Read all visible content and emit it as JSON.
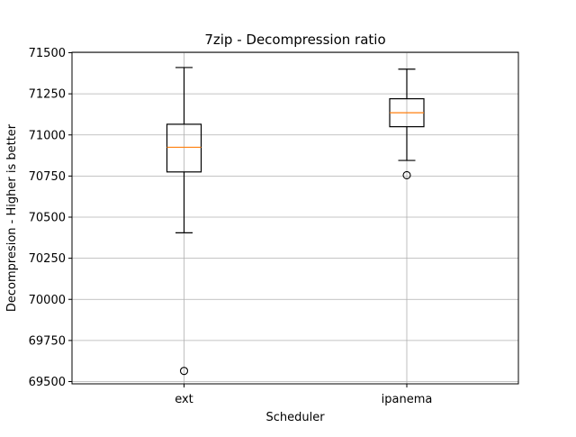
{
  "chart_data": {
    "type": "box",
    "title": "7zip - Decompression ratio",
    "xlabel": "Scheduler",
    "ylabel": "Decompresion - Higher is better",
    "categories": [
      "ext",
      "ipanema"
    ],
    "ylim": [
      69480,
      71500
    ],
    "yticks": [
      69500,
      69750,
      70000,
      70250,
      70500,
      70750,
      71000,
      71250,
      71500
    ],
    "grid": true,
    "boxes": [
      {
        "name": "ext",
        "whisker_low": 70405,
        "q1": 70775,
        "median": 70925,
        "q3": 71065,
        "whisker_high": 71410,
        "outliers": [
          69565
        ]
      },
      {
        "name": "ipanema",
        "whisker_low": 70845,
        "q1": 71050,
        "median": 71135,
        "q3": 71220,
        "whisker_high": 71400,
        "outliers": [
          70755
        ]
      }
    ],
    "colors": {
      "box": "#000000",
      "median": "#ff7f0e",
      "grid": "#b0b0b0"
    }
  }
}
